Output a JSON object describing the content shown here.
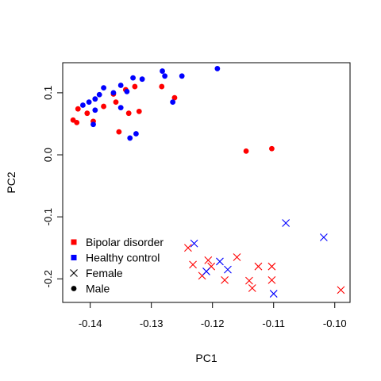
{
  "chart_data": {
    "type": "scatter",
    "title": "",
    "xlabel": "PC1",
    "ylabel": "PC2",
    "xlim": [
      -0.1445,
      -0.0975
    ],
    "ylim": [
      -0.238,
      0.1485
    ],
    "xticks": [
      -0.14,
      -0.13,
      -0.12,
      -0.11,
      -0.1
    ],
    "xtick_labels": [
      "-0.14",
      "-0.13",
      "-0.12",
      "-0.11",
      "-0.10"
    ],
    "yticks": [
      -0.2,
      -0.1,
      0.0,
      0.1
    ],
    "ytick_labels": [
      "-0.2",
      "-0.1",
      "0.0",
      "0.1"
    ],
    "grid": false,
    "legend_position": "bottom-left",
    "legend": [
      {
        "label": "Bipolar disorder",
        "marker": "square",
        "color": "#ff0000"
      },
      {
        "label": "Healthy control",
        "marker": "square",
        "color": "#0000ff"
      },
      {
        "label": "Female",
        "marker": "cross",
        "color": "#000000"
      },
      {
        "label": "Male",
        "marker": "dot",
        "color": "#000000"
      }
    ],
    "series": [
      {
        "group": "Bipolar disorder",
        "sex": "Male",
        "color": "#ff0000",
        "marker": "dot",
        "points": [
          [
            -0.1428,
            0.056
          ],
          [
            -0.1422,
            0.052
          ],
          [
            -0.142,
            0.074
          ],
          [
            -0.1405,
            0.067
          ],
          [
            -0.1395,
            0.054
          ],
          [
            -0.1378,
            0.078
          ],
          [
            -0.1362,
            0.098
          ],
          [
            -0.1358,
            0.085
          ],
          [
            -0.1353,
            0.037
          ],
          [
            -0.1342,
            0.105
          ],
          [
            -0.1337,
            0.067
          ],
          [
            -0.1327,
            0.11
          ],
          [
            -0.132,
            0.07
          ],
          [
            -0.1283,
            0.11
          ],
          [
            -0.1262,
            0.092
          ],
          [
            -0.1145,
            0.006
          ],
          [
            -0.1103,
            0.01
          ]
        ]
      },
      {
        "group": "Healthy control",
        "sex": "Male",
        "color": "#0000ff",
        "marker": "dot",
        "points": [
          [
            -0.1412,
            0.08
          ],
          [
            -0.1402,
            0.085
          ],
          [
            -0.1392,
            0.09
          ],
          [
            -0.1385,
            0.097
          ],
          [
            -0.1378,
            0.108
          ],
          [
            -0.1362,
            0.1
          ],
          [
            -0.135,
            0.112
          ],
          [
            -0.135,
            0.076
          ],
          [
            -0.134,
            0.102
          ],
          [
            -0.1335,
            0.027
          ],
          [
            -0.133,
            0.124
          ],
          [
            -0.1325,
            0.034
          ],
          [
            -0.1315,
            0.122
          ],
          [
            -0.1282,
            0.135
          ],
          [
            -0.1278,
            0.127
          ],
          [
            -0.1265,
            0.085
          ],
          [
            -0.125,
            0.127
          ],
          [
            -0.1192,
            0.139
          ],
          [
            -0.1395,
            0.049
          ],
          [
            -0.1392,
            0.072
          ]
        ]
      },
      {
        "group": "Bipolar disorder",
        "sex": "Female",
        "color": "#ff0000",
        "marker": "cross",
        "points": [
          [
            -0.124,
            -0.15
          ],
          [
            -0.1232,
            -0.177
          ],
          [
            -0.1217,
            -0.195
          ],
          [
            -0.1207,
            -0.17
          ],
          [
            -0.1202,
            -0.18
          ],
          [
            -0.118,
            -0.202
          ],
          [
            -0.116,
            -0.165
          ],
          [
            -0.114,
            -0.203
          ],
          [
            -0.1135,
            -0.215
          ],
          [
            -0.1125,
            -0.18
          ],
          [
            -0.1103,
            -0.18
          ],
          [
            -0.1103,
            -0.202
          ],
          [
            -0.099,
            -0.218
          ]
        ]
      },
      {
        "group": "Healthy control",
        "sex": "Female",
        "color": "#0000ff",
        "marker": "cross",
        "points": [
          [
            -0.123,
            -0.143
          ],
          [
            -0.121,
            -0.188
          ],
          [
            -0.1188,
            -0.172
          ],
          [
            -0.1175,
            -0.185
          ],
          [
            -0.11,
            -0.224
          ],
          [
            -0.108,
            -0.11
          ],
          [
            -0.1018,
            -0.133
          ]
        ]
      }
    ]
  }
}
